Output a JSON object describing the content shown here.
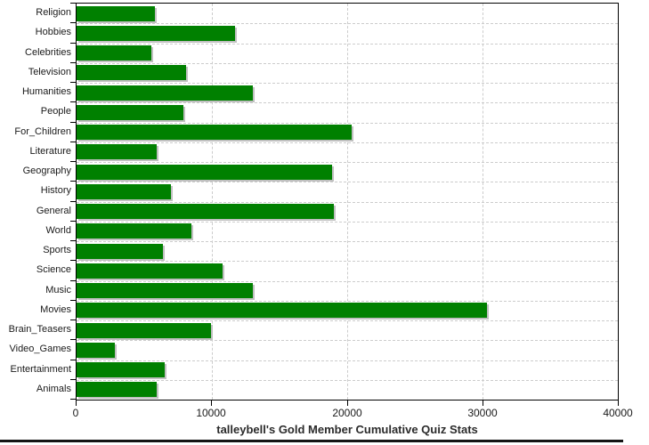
{
  "chart_data": {
    "type": "bar",
    "orientation": "horizontal",
    "title": "talleybell's Gold Member Cumulative Quiz Stats",
    "categories": [
      "Religion",
      "Hobbies",
      "Celebrities",
      "Television",
      "Humanities",
      "People",
      "For_Children",
      "Literature",
      "Geography",
      "History",
      "General",
      "World",
      "Sports",
      "Science",
      "Music",
      "Movies",
      "Brain_Teasers",
      "Video_Games",
      "Entertainment",
      "Animals"
    ],
    "values": [
      5800,
      11700,
      5500,
      8100,
      13000,
      7900,
      20300,
      5900,
      18900,
      7000,
      19000,
      8500,
      6400,
      10800,
      13000,
      30300,
      9950,
      2800,
      6500,
      5900
    ],
    "xlabel": "",
    "ylabel": "",
    "xlim": [
      0,
      40000
    ],
    "xticks": [
      0,
      10000,
      20000,
      30000,
      40000
    ],
    "xtick_labels": [
      "0",
      "10000",
      "20000",
      "30000",
      "40000"
    ],
    "grid": "dashed",
    "legend": "none",
    "colors": {
      "bar": "#008000",
      "bar_shadow": "#c0c0c0",
      "gridline": "#cccccc",
      "axis": "#000000",
      "tick_label": "#1a1a1a",
      "title": "#2b2b2b",
      "background": "#ffffff",
      "bottom_strip": "#141414"
    }
  }
}
